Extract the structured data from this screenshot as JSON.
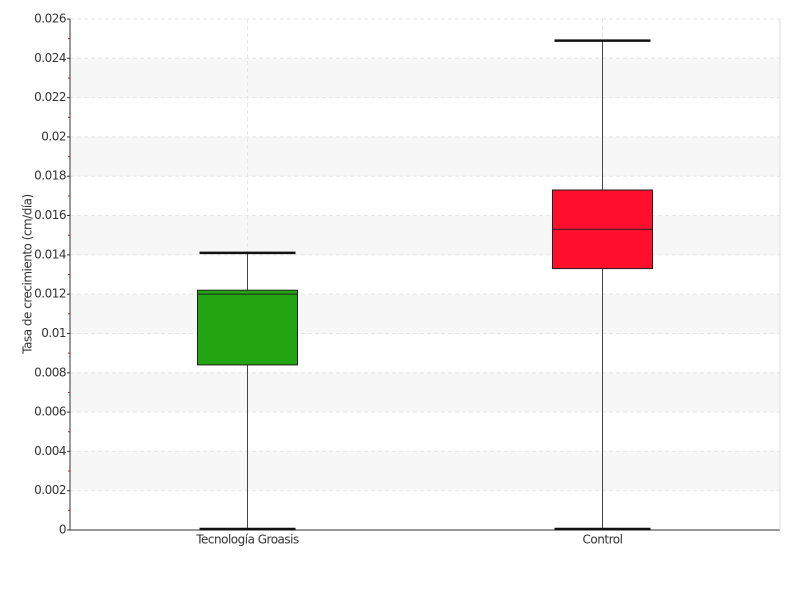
{
  "chart_data": {
    "type": "box",
    "y_label": "Tasa de crecimiento (cm/día)",
    "categories": [
      "Tecnología Groasis",
      "Control"
    ],
    "boxes": [
      {
        "color": "#22a511",
        "min": 0,
        "q1": 0.0084,
        "median": 0.012,
        "q3": 0.0122,
        "max": 0.0141
      },
      {
        "color": "#ff0f2c",
        "min": 0,
        "q1": 0.0133,
        "median": 0.0153,
        "q3": 0.0173,
        "max": 0.0249
      }
    ],
    "ylim": [
      0,
      0.026
    ],
    "yticks": [
      0,
      0.002,
      0.004,
      0.006,
      0.008,
      0.01,
      0.012,
      0.014,
      0.016,
      0.018,
      0.02,
      0.022,
      0.024,
      0.026
    ],
    "grid": true
  }
}
